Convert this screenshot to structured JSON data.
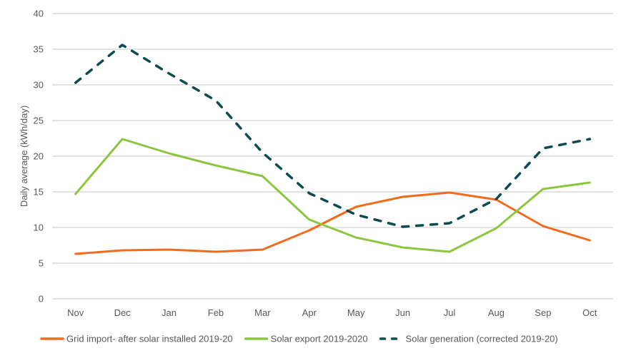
{
  "chart_data": {
    "type": "line",
    "title": "",
    "xlabel": "",
    "ylabel": "Daily average (kWh/day)",
    "ylim": [
      0,
      40
    ],
    "yticks": [
      0,
      5,
      10,
      15,
      20,
      25,
      30,
      35,
      40
    ],
    "grid": true,
    "legend_position": "bottom",
    "categories": [
      "Nov",
      "Dec",
      "Jan",
      "Feb",
      "Mar",
      "Apr",
      "May",
      "Jun",
      "Jul",
      "Aug",
      "Sep",
      "Oct"
    ],
    "series": [
      {
        "name": "Grid import- after solar installed 2019-20",
        "color": "#f26b1d",
        "style": "solid",
        "values": [
          6.3,
          6.8,
          6.9,
          6.6,
          6.9,
          9.6,
          12.9,
          14.3,
          14.9,
          13.9,
          10.2,
          8.2
        ]
      },
      {
        "name": "Solar export 2019-2020",
        "color": "#8cc63f",
        "style": "solid",
        "values": [
          14.7,
          22.4,
          20.4,
          18.7,
          17.2,
          11.1,
          8.6,
          7.2,
          6.6,
          9.9,
          15.4,
          16.3
        ]
      },
      {
        "name": "Solar generation (corrected 2019-20)",
        "color": "#0d4b4f",
        "style": "dashed",
        "values": [
          30.3,
          35.6,
          31.6,
          27.8,
          20.5,
          14.8,
          11.8,
          10.1,
          10.6,
          14.0,
          21.1,
          22.4
        ]
      }
    ]
  }
}
